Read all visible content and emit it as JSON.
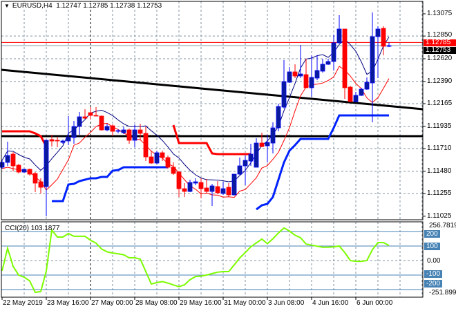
{
  "header": {
    "symbol": "EURUSD,H4",
    "open": "1.12747",
    "high": "1.12785",
    "low": "1.12738",
    "close": "1.12753"
  },
  "price_axis": {
    "ticks": [
      "1.13075",
      "1.12850",
      "1.12620",
      "1.12390",
      "1.12165",
      "1.11935",
      "1.11710",
      "1.11480",
      "1.11255",
      "1.11025"
    ],
    "ask_label": "1.12785",
    "bid_label": "1.12753"
  },
  "time_axis": {
    "labels": [
      "22 May 2019",
      "23 May 16:00",
      "27 May 00:00",
      "28 May 08:00",
      "29 May 16:00",
      "31 May 00:00",
      "3 Jun 08:00",
      "4 Jun 16:00",
      "6 Jun 00:00"
    ]
  },
  "cci": {
    "title": "CCI(20) 103.1877",
    "max_label": "256.7819",
    "min_label": "-251.8991",
    "level_labels": [
      "200",
      "100",
      "0.00",
      "-100",
      "-200"
    ]
  },
  "colors": {
    "bull": "#0000ff",
    "bull_body": "#0a1a9c",
    "bear": "#ff0000",
    "ma_high": "#000080",
    "ma_low": "#ff0000",
    "stop_upper": "#ff0000",
    "stop_lower": "#0022ff",
    "cci": "#7cfc00",
    "level": "#4682b4",
    "grid": "#8090a0"
  },
  "chart_data": [
    {
      "type": "candlestick",
      "title": "EURUSD,H4",
      "ylim": [
        1.11025,
        1.13075
      ],
      "ohlc": [
        [
          1.11521,
          1.11591,
          1.11507,
          1.1157
        ],
        [
          1.1157,
          1.1178,
          1.11535,
          1.1164
        ],
        [
          1.11654,
          1.11675,
          1.11479,
          1.11535
        ],
        [
          1.11542,
          1.11556,
          1.11458,
          1.11472
        ],
        [
          1.11472,
          1.11507,
          1.11465,
          1.115
        ],
        [
          1.115,
          1.11507,
          1.11437,
          1.11451
        ],
        [
          1.11458,
          1.11472,
          1.11269,
          1.1136
        ],
        [
          1.11374,
          1.11409,
          1.11255,
          1.11318
        ],
        [
          1.11325,
          1.11801,
          1.11024,
          1.11794
        ],
        [
          1.11801,
          1.1185,
          1.11731,
          1.11787
        ],
        [
          1.11794,
          1.11829,
          1.11724,
          1.11787
        ],
        [
          1.11773,
          1.11801,
          1.11759,
          1.11787
        ],
        [
          1.11787,
          1.12039,
          1.11745,
          1.11822
        ],
        [
          1.11822,
          1.1199,
          1.11759,
          1.11934
        ],
        [
          1.11934,
          1.12081,
          1.1185,
          1.12032
        ],
        [
          1.12032,
          1.12109,
          1.12011,
          1.12018
        ],
        [
          1.12074,
          1.1213,
          1.12004,
          1.12046
        ],
        [
          1.12046,
          1.1213,
          1.12039,
          1.12039
        ],
        [
          1.12039,
          1.12046,
          1.11892,
          1.11899
        ],
        [
          1.11899,
          1.11962,
          1.11885,
          1.11934
        ],
        [
          1.11941,
          1.11955,
          1.11836,
          1.11885
        ],
        [
          1.11885,
          1.11906,
          1.11864,
          1.11892
        ],
        [
          1.11871,
          1.11934,
          1.11857,
          1.11899
        ],
        [
          1.11899,
          1.11913,
          1.11759,
          1.11794
        ],
        [
          1.11794,
          1.11955,
          1.11724,
          1.11899
        ],
        [
          1.11899,
          1.11962,
          1.11794,
          1.11864
        ],
        [
          1.11864,
          1.11934,
          1.11584,
          1.11626
        ],
        [
          1.11626,
          1.11689,
          1.11556,
          1.11563
        ],
        [
          1.11563,
          1.11689,
          1.11556,
          1.11668
        ],
        [
          1.11668,
          1.11689,
          1.11584,
          1.11619
        ],
        [
          1.11619,
          1.1164,
          1.11507,
          1.11521
        ],
        [
          1.11521,
          1.1157,
          1.11444,
          1.11458
        ],
        [
          1.11472,
          1.11486,
          1.1122,
          1.11304
        ],
        [
          1.11304,
          1.1136,
          1.1122,
          1.11276
        ],
        [
          1.11276,
          1.11395,
          1.11269,
          1.11367
        ],
        [
          1.1136,
          1.11409,
          1.11339,
          1.11374
        ],
        [
          1.11367,
          1.11409,
          1.11206,
          1.11304
        ],
        [
          1.11311,
          1.11402,
          1.11262,
          1.11276
        ],
        [
          1.11276,
          1.11353,
          1.11129,
          1.11332
        ],
        [
          1.11325,
          1.11381,
          1.11255,
          1.11262
        ],
        [
          1.11255,
          1.11374,
          1.11241,
          1.11304
        ],
        [
          1.11318,
          1.1136,
          1.1122,
          1.11241
        ],
        [
          1.11241,
          1.11451,
          1.11234,
          1.11451
        ],
        [
          1.11451,
          1.11619,
          1.11444,
          1.11535
        ],
        [
          1.11535,
          1.1164,
          1.11339,
          1.11591
        ],
        [
          1.11584,
          1.11759,
          1.11535,
          1.11654
        ],
        [
          1.11521,
          1.11815,
          1.11521,
          1.11766
        ],
        [
          1.11766,
          1.11871,
          1.11724,
          1.11731
        ],
        [
          1.11738,
          1.1185,
          1.1157,
          1.11773
        ],
        [
          1.11766,
          1.11976,
          1.11661,
          1.1192
        ],
        [
          1.1192,
          1.12165,
          1.11885,
          1.12137
        ],
        [
          1.1213,
          1.12606,
          1.12116,
          1.12389
        ],
        [
          1.12382,
          1.12536,
          1.12375,
          1.12487
        ],
        [
          1.12487,
          1.12564,
          1.12424,
          1.12445
        ],
        [
          1.12445,
          1.1276,
          1.12424,
          1.12466
        ],
        [
          1.12459,
          1.1262,
          1.12326,
          1.12326
        ],
        [
          1.12326,
          1.12655,
          1.12235,
          1.12431
        ],
        [
          1.12424,
          1.12655,
          1.12403,
          1.12501
        ],
        [
          1.12494,
          1.1262,
          1.1248,
          1.12564
        ],
        [
          1.12564,
          1.1262,
          1.12557,
          1.12592
        ],
        [
          1.12592,
          1.12865,
          1.12501,
          1.12781
        ],
        [
          1.12781,
          1.13061,
          1.12774,
          1.12921
        ],
        [
          1.12921,
          1.12921,
          1.12214,
          1.12326
        ],
        [
          1.12333,
          1.12347,
          1.12179,
          1.12186
        ],
        [
          1.12186,
          1.12284,
          1.12179,
          1.12249
        ],
        [
          1.12249,
          1.12326,
          1.12242,
          1.12312
        ],
        [
          1.12312,
          1.12431,
          1.12305,
          1.12382
        ],
        [
          1.12375,
          1.13089,
          1.11976,
          1.12844
        ],
        [
          1.12844,
          1.12949,
          1.12424,
          1.12921
        ],
        [
          1.12928,
          1.12949,
          1.12655,
          1.12746
        ],
        [
          1.12747,
          1.12785,
          1.12738,
          1.12753
        ]
      ],
      "ma_period": 5,
      "stop_upper": [
        1.11885,
        1.11885,
        1.11885,
        1.11885,
        1.11885,
        1.11885,
        1.11864,
        1.11836,
        1.11731,
        null,
        null,
        null,
        null,
        null,
        null,
        null,
        null,
        null,
        null,
        null,
        null,
        null,
        null,
        null,
        null,
        null,
        null,
        null,
        null,
        null,
        null,
        1.11948,
        1.11766,
        1.11766,
        1.11766,
        1.11766,
        1.11766,
        1.11766,
        1.11661,
        1.11654,
        1.11654,
        1.11654,
        1.11654,
        1.11654,
        1.11654,
        1.11654,
        null,
        null,
        null,
        null,
        null,
        null,
        null,
        null,
        null,
        null,
        null,
        null,
        null,
        null,
        null,
        null,
        null,
        null,
        null,
        null,
        null,
        null,
        null,
        null,
        null
      ],
      "stop_lower": [
        null,
        null,
        null,
        null,
        null,
        null,
        null,
        null,
        null,
        1.11178,
        1.11178,
        1.11178,
        1.11346,
        1.11353,
        1.11381,
        1.11395,
        1.11409,
        1.11409,
        1.11423,
        1.11423,
        1.11486,
        1.11493,
        1.11521,
        1.11521,
        1.11521,
        1.11521,
        1.11521,
        1.11521,
        1.11521,
        1.11521,
        1.11521,
        null,
        null,
        null,
        null,
        null,
        null,
        null,
        null,
        null,
        null,
        null,
        null,
        null,
        null,
        null,
        1.11094,
        1.11136,
        1.1115,
        1.1122,
        1.11395,
        1.1157,
        1.11689,
        1.11745,
        1.11808,
        1.11808,
        1.11808,
        1.11808,
        1.11808,
        1.11808,
        1.1192,
        1.12046,
        1.12046,
        1.12046,
        1.12046,
        1.12046,
        1.12046,
        1.12046,
        1.12046,
        1.12046,
        1.12046
      ],
      "trendline": {
        "start_price": 1.12508,
        "end_price": 1.12109
      },
      "horizontal_line": 1.11836,
      "ask": 1.12785,
      "bid": 1.12753
    },
    {
      "type": "line",
      "title": "CCI(20) 103.1877",
      "ylim": [
        -251.8991,
        256.7819
      ],
      "levels": [
        200,
        100,
        0,
        -100,
        -200
      ],
      "values": [
        -71,
        85,
        -40,
        -100,
        -115,
        -140,
        -219,
        -214,
        -71,
        210,
        162,
        162,
        186,
        167,
        167,
        167,
        140,
        120,
        80,
        60,
        52,
        46,
        40,
        19,
        19,
        10,
        -75,
        -162,
        -152,
        -145,
        -155,
        -168,
        -180,
        -167,
        -132,
        -110,
        -107,
        -100,
        -90,
        -80,
        -76,
        -76,
        -30,
        18,
        55,
        95,
        122,
        148,
        116,
        150,
        190,
        225,
        203,
        175,
        157,
        114,
        106,
        99,
        92,
        92,
        95,
        100,
        55,
        0,
        -5,
        -5,
        0,
        75,
        124,
        124,
        103.1877
      ]
    }
  ]
}
